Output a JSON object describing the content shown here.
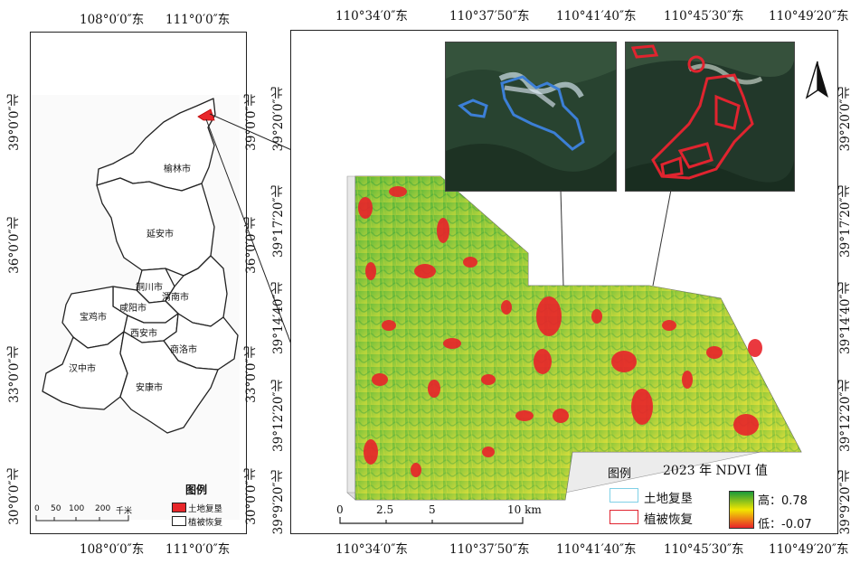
{
  "overview": {
    "top_ticks": [
      "108°0′0″东",
      "111°0′0″东"
    ],
    "bottom_ticks": [
      "108°0′0″东",
      "111°0′0″东"
    ],
    "left_ticks": [
      "39°0′0″北",
      "36°0′0″北",
      "33°0′0″北",
      "30°0′0″北"
    ],
    "right_ticks": [
      "39°0′0″北",
      "36°0′0″北",
      "33°0′0″北",
      "30°0′0″北"
    ],
    "cities": [
      "榆林市",
      "延安市",
      "铜川市",
      "渭南市",
      "咸阳市",
      "宝鸡市",
      "西安市",
      "商洛市",
      "汉中市",
      "安康市"
    ],
    "legend": {
      "title": "图例",
      "items": [
        {
          "label": "土地复垦",
          "color": "#e8262a"
        },
        {
          "label": "植被恢复",
          "color": "#ffffff"
        }
      ]
    },
    "scale": {
      "ticks": [
        "0",
        "50",
        "100",
        "200"
      ],
      "unit": "千米"
    }
  },
  "detail": {
    "top_ticks": [
      "110°34′0″东",
      "110°37′50″东",
      "110°41′40″东",
      "110°45′30″东",
      "110°49′20″东"
    ],
    "bottom_ticks": [
      "110°34′0″东",
      "110°37′50″东",
      "110°41′40″东",
      "110°45′30″东",
      "110°49′20″东"
    ],
    "left_ticks": [
      "39°20′0″北",
      "39°17′20″北",
      "39°14′40″北",
      "39°12′20″北",
      "39°9′20″北"
    ],
    "right_ticks": [
      "39°20′0″北",
      "39°17′20″北",
      "39°14′40″北",
      "39°12′20″北",
      "39°9′20″北"
    ],
    "north_arrow": "north-arrow-icon",
    "legend": {
      "title": "图例",
      "ndvi_title": "2023 年 NDVI 值",
      "items": [
        {
          "label": "土地复垦",
          "color": "#7fd0e6"
        },
        {
          "label": "植被恢复",
          "color": "#e0242f"
        }
      ],
      "high": "高：0.78",
      "low": "低：-0.07",
      "gradient_colors": [
        "#1a9a3a",
        "#f2e600",
        "#e8232a"
      ]
    },
    "scale": {
      "ticks": [
        "0",
        "2.5",
        "5",
        "10 km"
      ]
    }
  }
}
